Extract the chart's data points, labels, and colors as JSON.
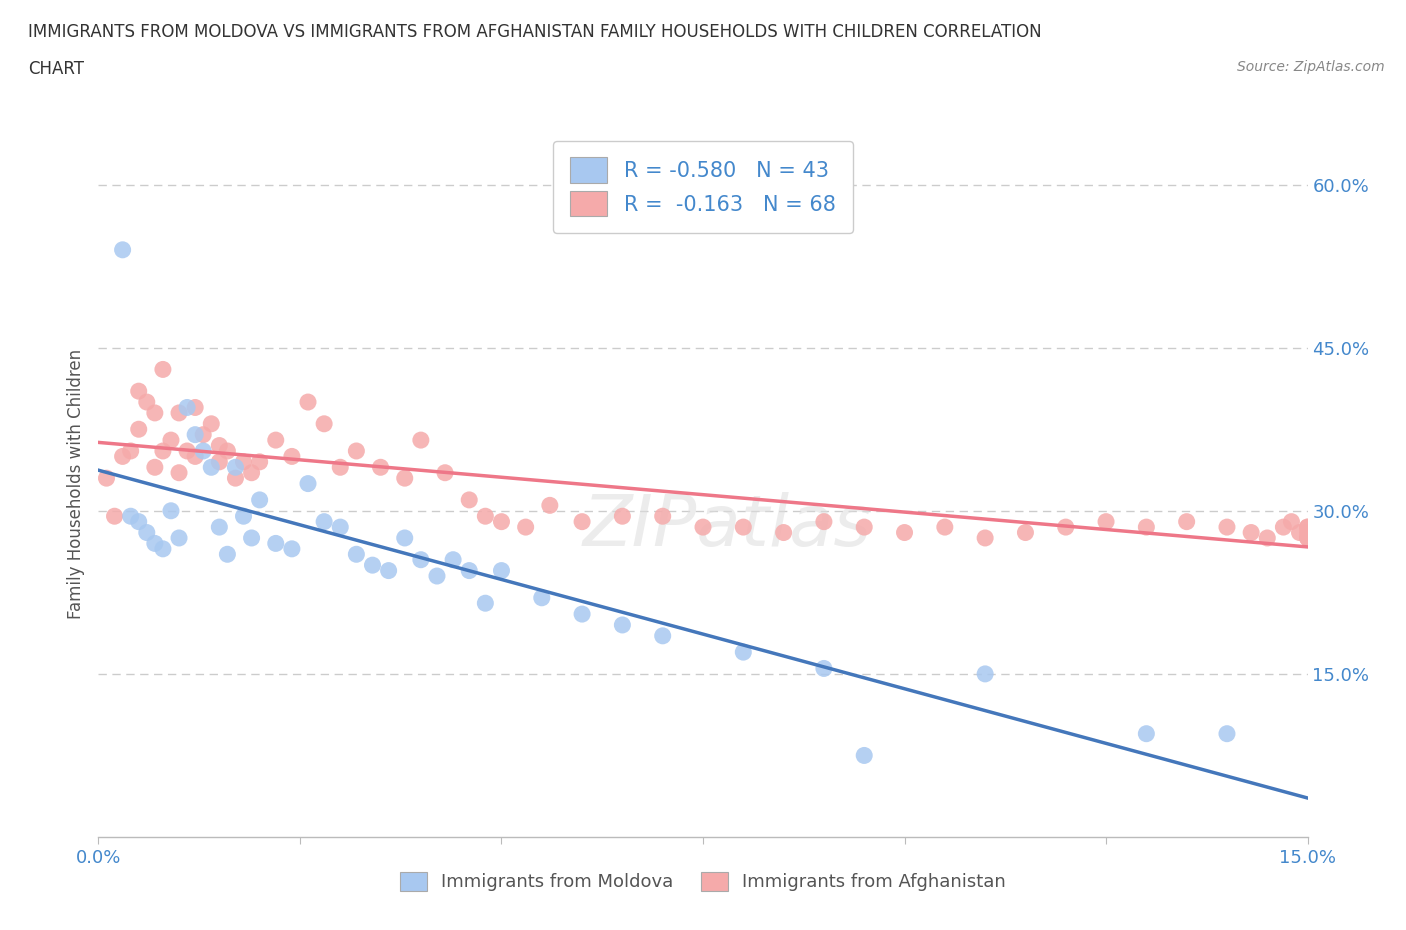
{
  "title_line1": "IMMIGRANTS FROM MOLDOVA VS IMMIGRANTS FROM AFGHANISTAN FAMILY HOUSEHOLDS WITH CHILDREN CORRELATION",
  "title_line2": "CHART",
  "source_text": "Source: ZipAtlas.com",
  "ylabel": "Family Households with Children",
  "xlim": [
    0.0,
    0.15
  ],
  "ylim": [
    0.0,
    0.65
  ],
  "x_ticks": [
    0.0,
    0.025,
    0.05,
    0.075,
    0.1,
    0.125,
    0.15
  ],
  "y_ticks_right": [
    0.15,
    0.3,
    0.45,
    0.6
  ],
  "y_tick_labels_right": [
    "15.0%",
    "30.0%",
    "45.0%",
    "60.0%"
  ],
  "moldova_color": "#A8C8F0",
  "afghanistan_color": "#F5AAAA",
  "moldova_line_color": "#4477BB",
  "afghanistan_line_color": "#EE7788",
  "moldova_R": -0.58,
  "moldova_N": 43,
  "afghanistan_R": -0.163,
  "afghanistan_N": 68,
  "watermark": "ZIPatlas",
  "moldova_scatter_x": [
    0.003,
    0.004,
    0.005,
    0.006,
    0.007,
    0.008,
    0.009,
    0.01,
    0.011,
    0.012,
    0.013,
    0.014,
    0.015,
    0.016,
    0.017,
    0.018,
    0.019,
    0.02,
    0.022,
    0.024,
    0.026,
    0.028,
    0.03,
    0.032,
    0.034,
    0.036,
    0.038,
    0.04,
    0.042,
    0.044,
    0.046,
    0.048,
    0.05,
    0.055,
    0.06,
    0.065,
    0.07,
    0.08,
    0.09,
    0.095,
    0.11,
    0.13,
    0.14
  ],
  "moldova_scatter_y": [
    0.54,
    0.295,
    0.29,
    0.28,
    0.27,
    0.265,
    0.3,
    0.275,
    0.395,
    0.37,
    0.355,
    0.34,
    0.285,
    0.26,
    0.34,
    0.295,
    0.275,
    0.31,
    0.27,
    0.265,
    0.325,
    0.29,
    0.285,
    0.26,
    0.25,
    0.245,
    0.275,
    0.255,
    0.24,
    0.255,
    0.245,
    0.215,
    0.245,
    0.22,
    0.205,
    0.195,
    0.185,
    0.17,
    0.155,
    0.075,
    0.15,
    0.095,
    0.095
  ],
  "afghanistan_scatter_x": [
    0.001,
    0.002,
    0.003,
    0.004,
    0.005,
    0.005,
    0.006,
    0.007,
    0.007,
    0.008,
    0.008,
    0.009,
    0.01,
    0.01,
    0.011,
    0.012,
    0.012,
    0.013,
    0.014,
    0.015,
    0.015,
    0.016,
    0.017,
    0.018,
    0.019,
    0.02,
    0.022,
    0.024,
    0.026,
    0.028,
    0.03,
    0.032,
    0.035,
    0.038,
    0.04,
    0.043,
    0.046,
    0.048,
    0.05,
    0.053,
    0.056,
    0.06,
    0.065,
    0.07,
    0.075,
    0.08,
    0.085,
    0.09,
    0.095,
    0.1,
    0.105,
    0.11,
    0.115,
    0.12,
    0.125,
    0.13,
    0.135,
    0.14,
    0.143,
    0.145,
    0.147,
    0.148,
    0.149,
    0.15,
    0.15,
    0.15,
    0.15,
    0.15
  ],
  "afghanistan_scatter_y": [
    0.33,
    0.295,
    0.35,
    0.355,
    0.41,
    0.375,
    0.4,
    0.39,
    0.34,
    0.43,
    0.355,
    0.365,
    0.335,
    0.39,
    0.355,
    0.395,
    0.35,
    0.37,
    0.38,
    0.345,
    0.36,
    0.355,
    0.33,
    0.345,
    0.335,
    0.345,
    0.365,
    0.35,
    0.4,
    0.38,
    0.34,
    0.355,
    0.34,
    0.33,
    0.365,
    0.335,
    0.31,
    0.295,
    0.29,
    0.285,
    0.305,
    0.29,
    0.295,
    0.295,
    0.285,
    0.285,
    0.28,
    0.29,
    0.285,
    0.28,
    0.285,
    0.275,
    0.28,
    0.285,
    0.29,
    0.285,
    0.29,
    0.285,
    0.28,
    0.275,
    0.285,
    0.29,
    0.28,
    0.285,
    0.285,
    0.28,
    0.275,
    0.275
  ],
  "background_color": "#FFFFFF",
  "grid_color": "#CCCCCC"
}
